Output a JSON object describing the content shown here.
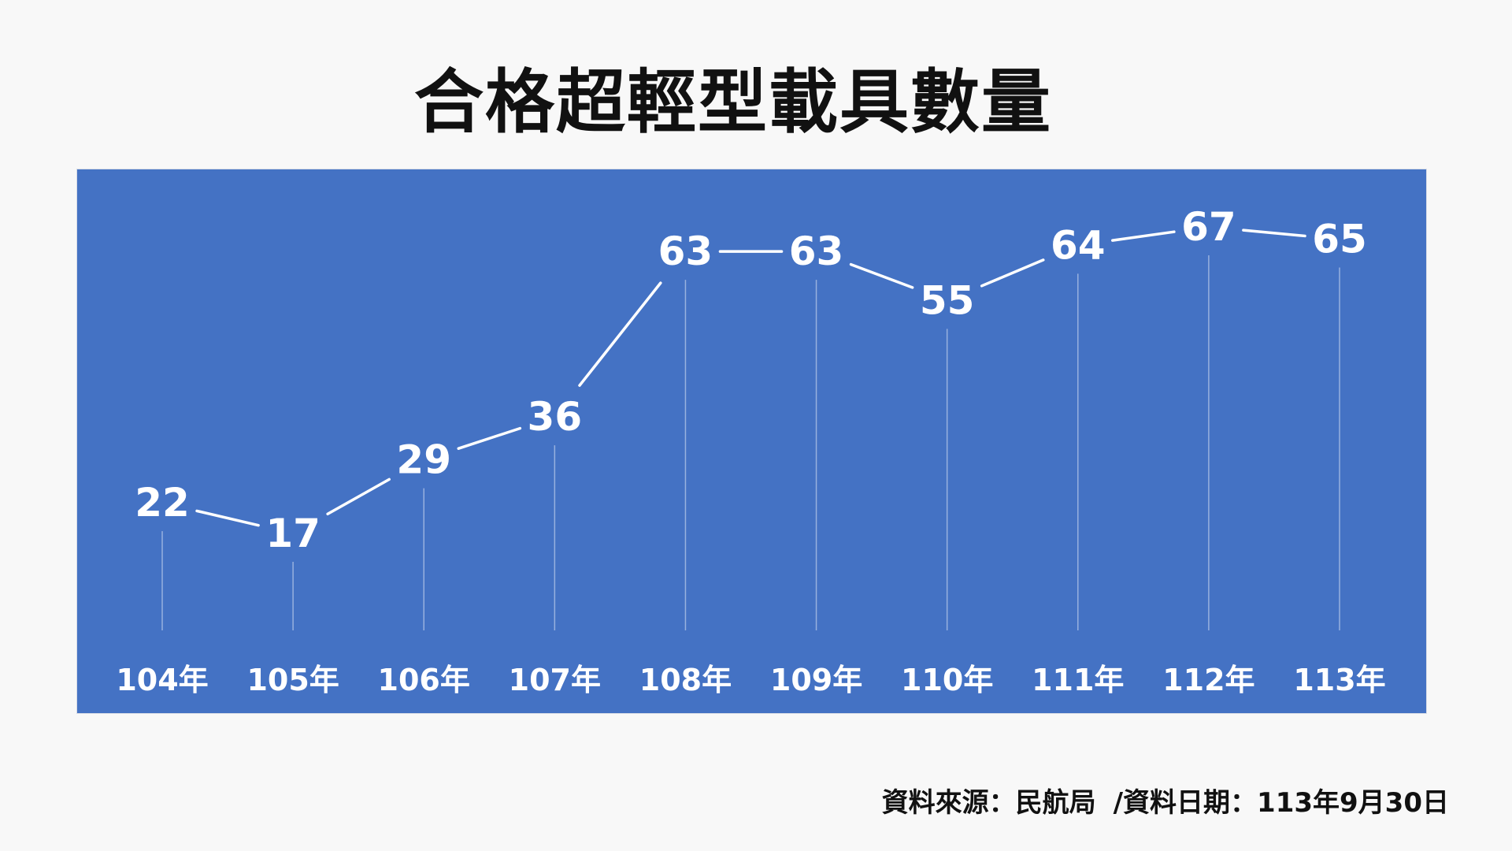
{
  "chart_data": {
    "type": "line",
    "title": "合格超輕型載具數量",
    "categories": [
      "104年",
      "105年",
      "106年",
      "107年",
      "108年",
      "109年",
      "110年",
      "111年",
      "112年",
      "113年"
    ],
    "values": [
      22,
      17,
      29,
      36,
      63,
      63,
      55,
      64,
      67,
      65
    ],
    "xlabel": "",
    "ylabel": "",
    "grid": false,
    "data_labels": true,
    "colors": {
      "background": "#4472c4",
      "line": "#ffffff",
      "labels": "#ffffff"
    }
  },
  "footer": {
    "source": "資料來源：民航局",
    "date": "/資料日期：113年9月30日"
  }
}
